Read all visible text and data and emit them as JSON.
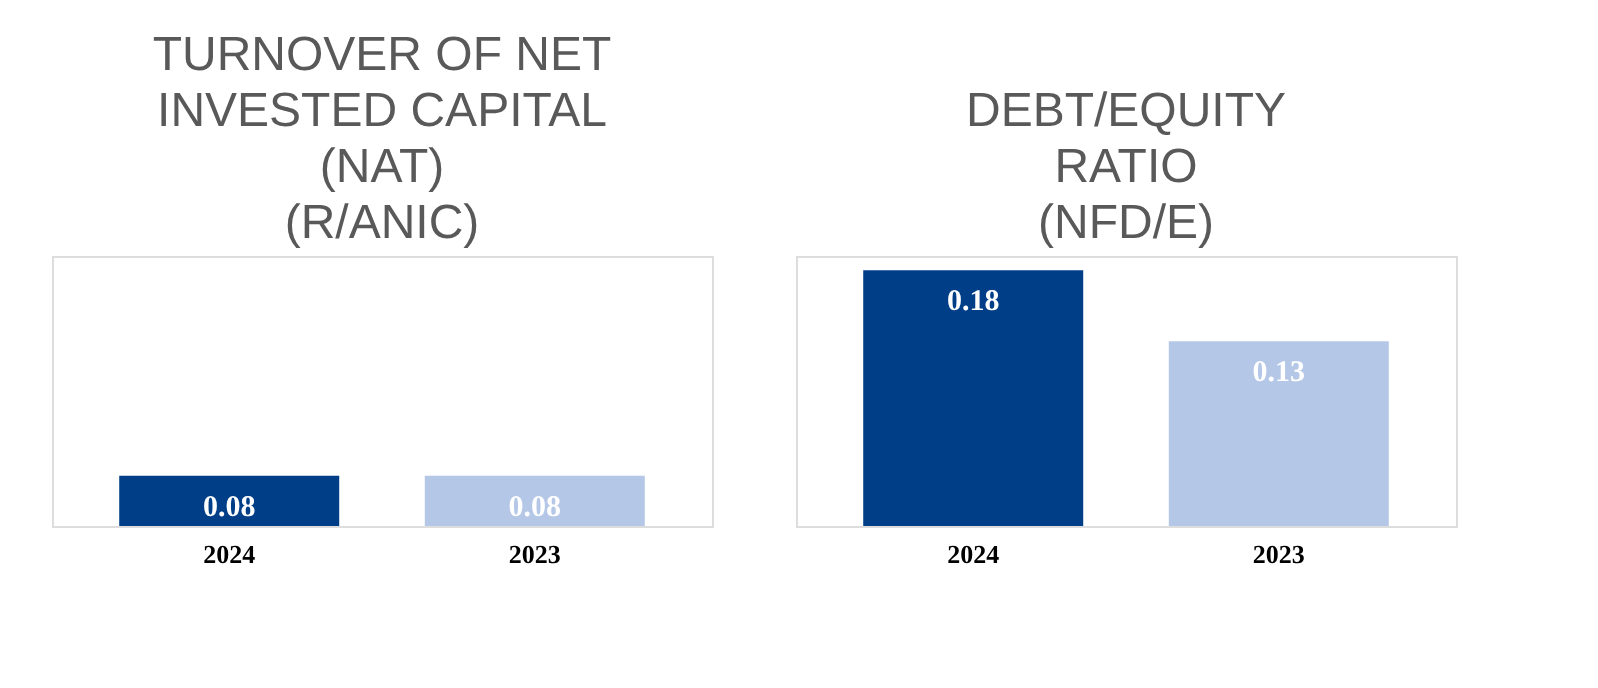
{
  "chart_data": [
    {
      "type": "bar",
      "title": "TURNOVER OF NET\nINVESTED CAPITAL\n(NAT)\n(R/ANIC)",
      "categories": [
        "2024",
        "2023"
      ],
      "values": [
        0.08,
        0.08
      ],
      "colors": [
        "#003f87",
        "#b4c7e7"
      ],
      "ylim": [
        0,
        0.43
      ],
      "data_labels": true,
      "tick_labels": "x"
    },
    {
      "type": "bar",
      "title": "DEBT/EQUITY\nRATIO\n(NFD/E)",
      "categories": [
        "2024",
        "2023"
      ],
      "values": [
        0.18,
        0.13
      ],
      "colors": [
        "#003f87",
        "#b4c7e7"
      ],
      "ylim": [
        0,
        0.19
      ],
      "data_labels": true,
      "tick_labels": "x"
    }
  ]
}
